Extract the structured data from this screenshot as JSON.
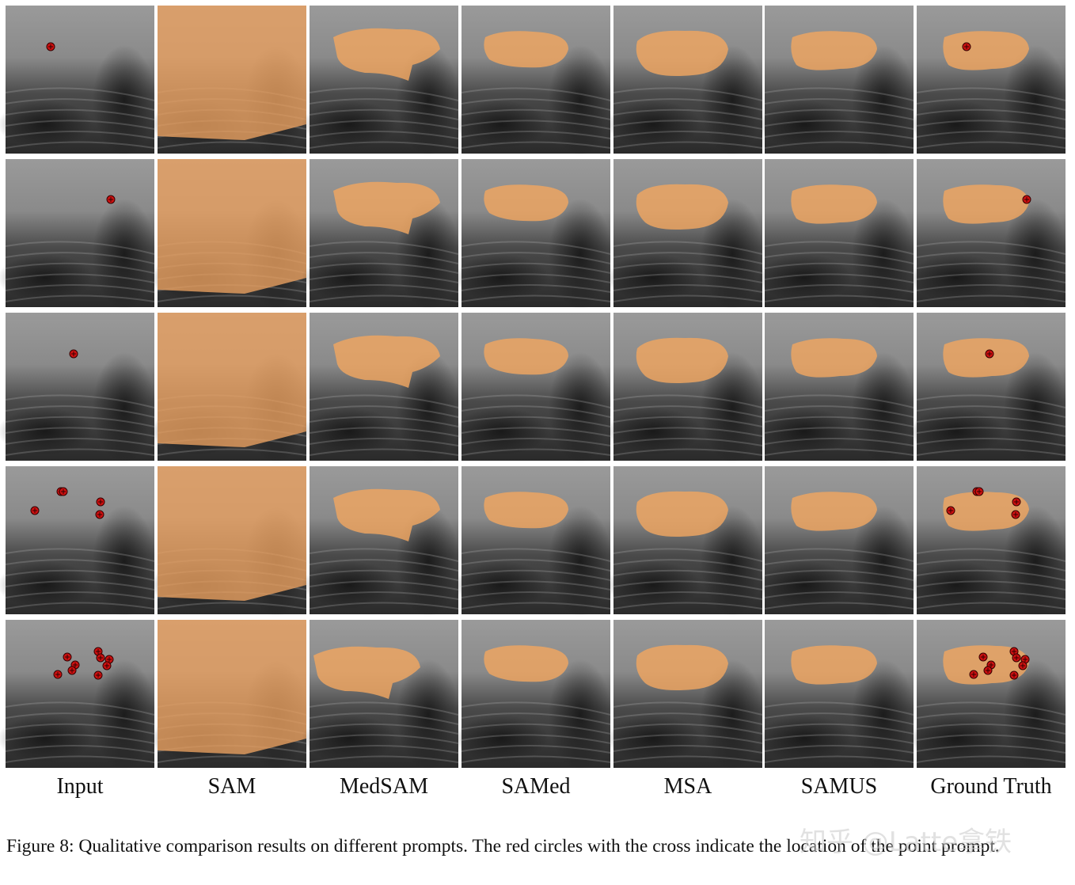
{
  "figure": {
    "columns": [
      "Input",
      "SAM",
      "MedSAM",
      "SAMed",
      "MSA",
      "SAMUS",
      "Ground Truth"
    ],
    "caption": "Figure 8: Qualitative comparison results on different prompts. The red circles with the cross indicate the location of the point prompt.",
    "watermark": "知乎 @Latte拿铁"
  }
}
